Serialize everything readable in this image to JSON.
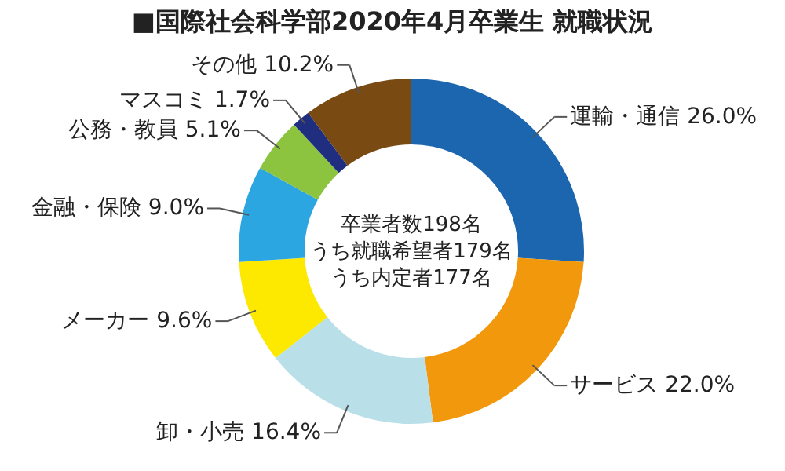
{
  "chart_data": {
    "type": "donut",
    "title": "■国際社会科学部2020年4月卒業生 就職状況",
    "categories": [
      "運輸・通信",
      "サービス",
      "卸・小売",
      "メーカー",
      "金融・保険",
      "公務・教員",
      "マスコミ",
      "その他"
    ],
    "values": [
      26.0,
      22.0,
      16.4,
      9.6,
      9.0,
      5.1,
      1.7,
      10.2
    ],
    "value_labels": [
      "26.0%",
      "22.0%",
      "16.4%",
      "9.6%",
      "9.0%",
      "5.1%",
      "1.7%",
      "10.2%"
    ],
    "colors": [
      "#1b66ae",
      "#f1980c",
      "#b9dfe9",
      "#fde800",
      "#2ba6e0",
      "#8cc43f",
      "#1f2e7e",
      "#7a4a13"
    ],
    "annotations": [
      "卒業者数198名",
      "うち就職希望者179名",
      "うち内定者177名"
    ]
  }
}
